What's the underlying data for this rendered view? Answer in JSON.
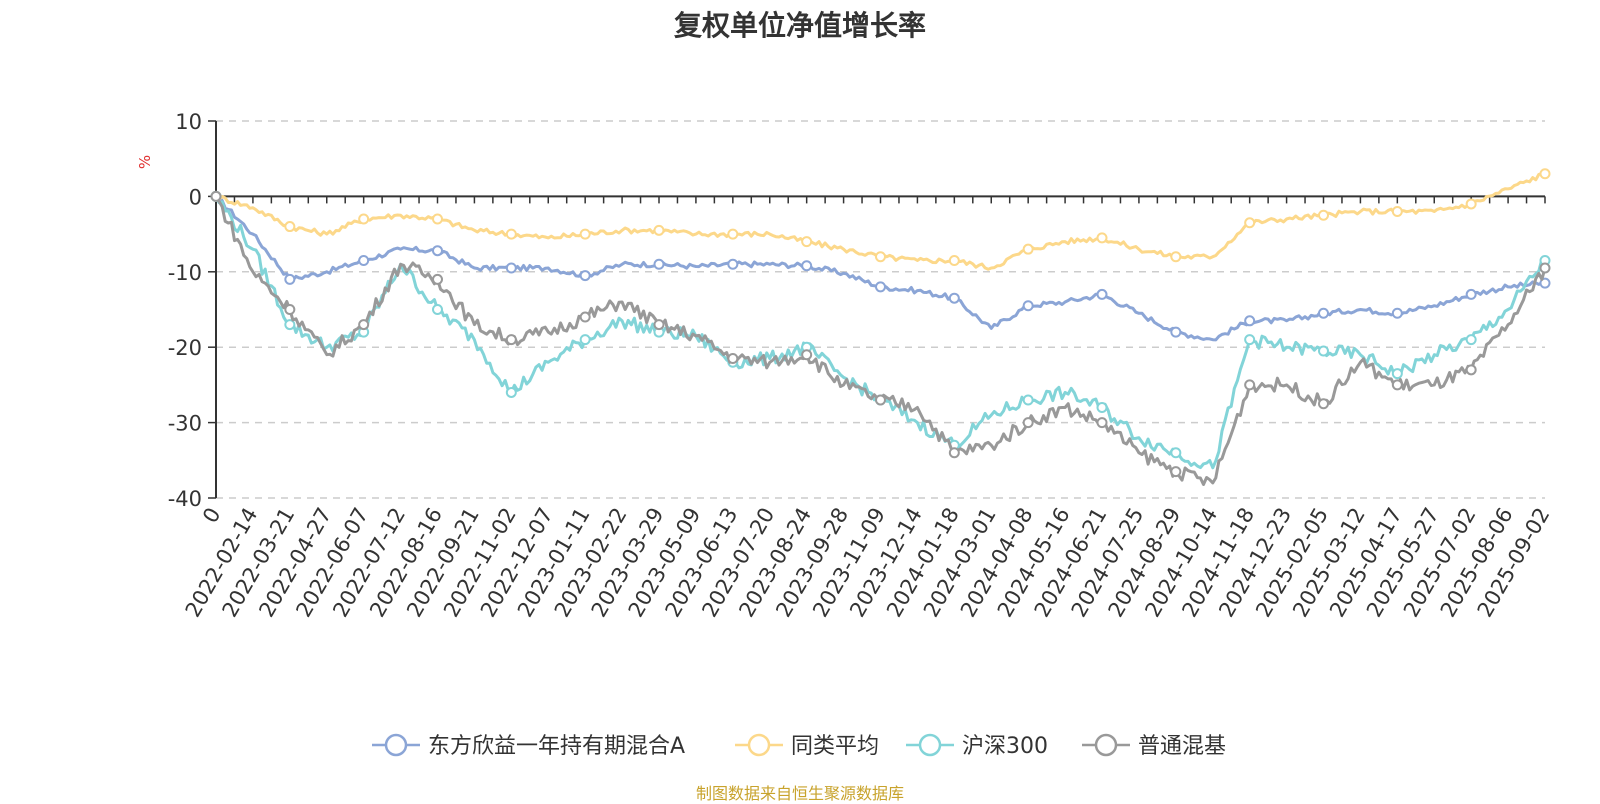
{
  "title": "复权单位净值增长率",
  "source": "制图数据来自恒生聚源数据库",
  "chart_data": {
    "type": "line",
    "title": "复权单位净值增长率",
    "ylabel": "%",
    "ylim": [
      -40,
      10
    ],
    "yticks": [
      10,
      0,
      -10,
      -20,
      -30,
      -40
    ],
    "grid": true,
    "legend_position": "bottom",
    "x_tick_labels": [
      "0",
      "2022-02-14",
      "2022-03-21",
      "2022-04-27",
      "2022-06-07",
      "2022-07-12",
      "2022-08-16",
      "2022-09-21",
      "2022-11-02",
      "2022-12-07",
      "2023-01-11",
      "2023-02-22",
      "2023-03-29",
      "2023-05-09",
      "2023-06-13",
      "2023-07-20",
      "2023-08-24",
      "2023-09-28",
      "2023-11-09",
      "2023-12-14",
      "2024-01-18",
      "2024-03-01",
      "2024-04-08",
      "2024-05-16",
      "2024-06-21",
      "2024-07-25",
      "2024-08-29",
      "2024-10-14",
      "2024-11-18",
      "2024-12-23",
      "2025-02-05",
      "2025-03-12",
      "2025-04-17",
      "2025-05-27",
      "2025-07-02",
      "2025-08-06",
      "2025-09-02"
    ],
    "series": [
      {
        "name": "东方欣益一年持有期混合A",
        "color": "#8ba5d6",
        "values": [
          0,
          -5,
          -11,
          -10,
          -8.5,
          -7,
          -7.2,
          -9.5,
          -9.5,
          -9.5,
          -10.5,
          -9,
          -9,
          -9.3,
          -9,
          -9,
          -9.2,
          -10.2,
          -12,
          -12.5,
          -13.5,
          -17.5,
          -14.5,
          -14,
          -13,
          -15.5,
          -18,
          -19,
          -16.5,
          -16.5,
          -15.5,
          -15,
          -15.5,
          -14.5,
          -13,
          -12,
          -11.5
        ]
      },
      {
        "name": "同类平均",
        "color": "#fcd88a",
        "values": [
          0,
          -1.5,
          -4,
          -5,
          -3,
          -2.5,
          -3,
          -4.5,
          -5,
          -5.5,
          -5,
          -4.5,
          -4.5,
          -5,
          -5,
          -5,
          -6,
          -7,
          -8,
          -8.5,
          -8.5,
          -9.5,
          -7,
          -6,
          -5.5,
          -7,
          -8,
          -8,
          -3.5,
          -3,
          -2.5,
          -2,
          -2,
          -2,
          -1,
          1,
          3
        ]
      },
      {
        "name": "沪深300",
        "color": "#82d4d8",
        "values": [
          0,
          -7,
          -17,
          -20,
          -18,
          -9,
          -15,
          -19,
          -26,
          -22,
          -19,
          -16.5,
          -18,
          -18.5,
          -22,
          -21.5,
          -20,
          -24,
          -27,
          -30,
          -33,
          -29,
          -27,
          -26,
          -28,
          -32,
          -34,
          -36,
          -19,
          -20,
          -20.5,
          -21,
          -23.5,
          -21,
          -19,
          -15,
          -8.5
        ]
      },
      {
        "name": "普通混基",
        "color": "#999999",
        "values": [
          0,
          -10,
          -15,
          -21,
          -17,
          -9,
          -11,
          -17,
          -19,
          -18,
          -16,
          -14,
          -17,
          -18.5,
          -21.5,
          -22,
          -21,
          -25,
          -27,
          -28,
          -34,
          -33,
          -30,
          -28,
          -30,
          -34,
          -36.5,
          -38,
          -25,
          -25,
          -27.5,
          -22,
          -25,
          -25,
          -23,
          -17,
          -9.5
        ]
      }
    ]
  }
}
